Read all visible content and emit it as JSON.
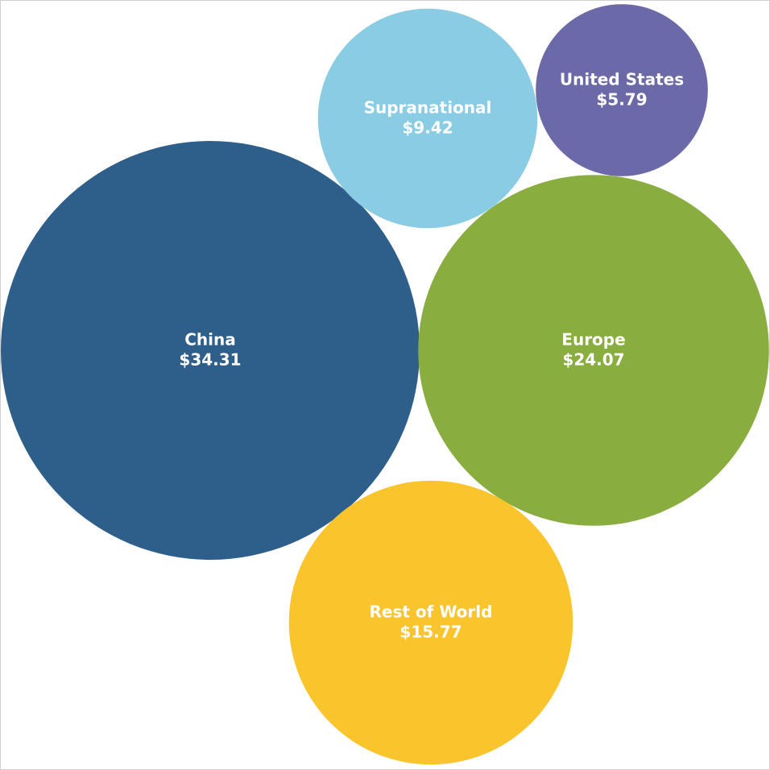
{
  "chart_data": {
    "type": "packed-bubble",
    "categories": [
      "China",
      "Europe",
      "Rest of World",
      "Supranational",
      "United States"
    ],
    "values": [
      34.31,
      24.07,
      15.77,
      9.42,
      5.79
    ],
    "value_labels": [
      "$34.31",
      "$24.07",
      "$15.77",
      "$9.42",
      "$5.79"
    ],
    "colors": [
      "#2e5e8a",
      "#8aad40",
      "#f9c42c",
      "#89cce4",
      "#6c69a9"
    ]
  }
}
